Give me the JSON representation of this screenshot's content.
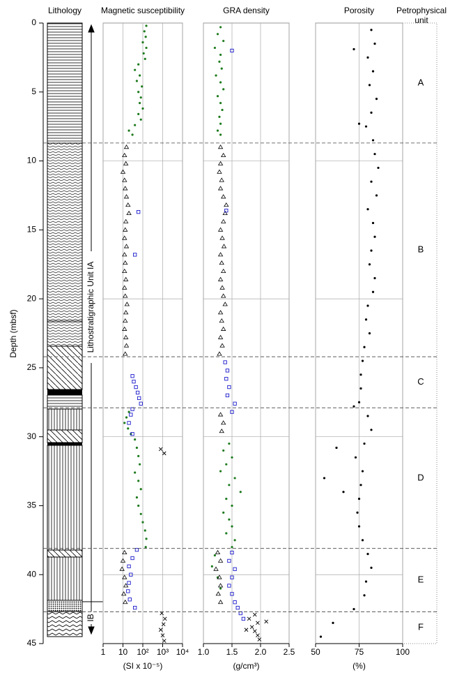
{
  "depth_axis": {
    "label": "Depth (mbsf)",
    "ylim": [
      0,
      45
    ],
    "yticks": [
      0,
      5,
      10,
      15,
      20,
      25,
      30,
      35,
      40,
      45
    ],
    "grid_depths": [
      10,
      20,
      30,
      40
    ]
  },
  "lithology": {
    "title": "Lithology",
    "unit_ia": "Lithostratigraphic Unit IA",
    "unit_ib": "IB"
  },
  "petrophysical": {
    "title": [
      "Petrophysical",
      "unit"
    ],
    "units": [
      "A",
      "B",
      "C",
      "D",
      "E",
      "F"
    ],
    "boundaries": [
      8.7,
      24.2,
      27.9,
      38.1,
      42.7
    ]
  },
  "chart_data": [
    {
      "type": "scatter",
      "title": "Magnetic susceptibility",
      "xlabel": "(SI x 10⁻⁵)",
      "log_x": true,
      "xlim": [
        1,
        10000
      ],
      "xticks": [
        1,
        10,
        {
          "value": 100,
          "label": "10²"
        },
        {
          "value": 1000,
          "label": "10³"
        },
        {
          "value": 10000,
          "label": "10⁴"
        }
      ],
      "series": [
        {
          "marker": "dot",
          "color": "#1e7b1e",
          "y": [
            0.2,
            0.6,
            1,
            1.4,
            1.8,
            2.2,
            2.6,
            3,
            3.4,
            3.8,
            4.2,
            4.6,
            5,
            5.4,
            5.8,
            6.2,
            6.6,
            7,
            7.4,
            7.8,
            8.1
          ],
          "x": [
            150,
            120,
            140,
            100,
            150,
            110,
            130,
            60,
            40,
            70,
            50,
            90,
            60,
            80,
            70,
            100,
            60,
            80,
            40,
            20,
            30
          ]
        },
        {
          "marker": "dot",
          "color": "#1e7b1e",
          "y": [
            28.2,
            28.6,
            29,
            29.4,
            29.8,
            30.2,
            30.8,
            31.4,
            32,
            32.6,
            33.2,
            33.8,
            34.4,
            35,
            35.6,
            36.2,
            36.8,
            37.4,
            38
          ],
          "x": [
            20,
            15,
            12,
            18,
            25,
            40,
            50,
            60,
            70,
            40,
            60,
            80,
            50,
            60,
            80,
            100,
            130,
            150,
            140
          ]
        },
        {
          "marker": "triangle",
          "color": "#000000",
          "y": [
            9,
            9.6,
            10.2,
            10.8,
            11.4,
            12,
            12.6,
            13.2,
            13.8,
            14.4,
            15,
            15.6,
            16.2,
            16.8,
            17.4,
            18,
            18.6,
            19.2,
            19.8,
            20.4,
            21,
            21.6,
            22.2,
            22.8,
            23.4,
            24,
            38.4,
            39,
            39.6,
            40.2,
            40.8,
            41.4,
            42
          ],
          "x": [
            15,
            12,
            14,
            10,
            12,
            13,
            15,
            18,
            20,
            14,
            13,
            12,
            15,
            12,
            13,
            12,
            14,
            12,
            13,
            16,
            14,
            13,
            12,
            14,
            15,
            13,
            12,
            10,
            9,
            12,
            14,
            11,
            13
          ]
        },
        {
          "marker": "square",
          "color": "#1a1acc",
          "y": [
            13.7,
            16.8,
            25.6,
            26,
            26.4,
            26.8,
            27.2,
            27.6,
            28,
            28.4,
            29,
            29.8,
            38.2,
            38.8,
            39.4,
            40,
            40.6,
            41.2,
            41.8,
            42.4
          ],
          "x": [
            60,
            40,
            30,
            35,
            45,
            55,
            65,
            80,
            30,
            25,
            20,
            30,
            50,
            30,
            20,
            25,
            20,
            18,
            22,
            40
          ]
        },
        {
          "marker": "cross",
          "color": "#000000",
          "y": [
            30.9,
            31.2,
            42.8,
            43.2,
            43.6,
            44,
            44.4,
            44.8
          ],
          "x": [
            800,
            1200,
            900,
            1300,
            1100,
            800,
            1000,
            1200
          ]
        }
      ]
    },
    {
      "type": "scatter",
      "title": "GRA density",
      "xlabel": "(g/cm³)",
      "log_x": false,
      "xlim": [
        1.0,
        2.5
      ],
      "xticks": [
        {
          "value": 1.0,
          "label": "1.0"
        },
        {
          "value": 1.5,
          "label": "1.5"
        },
        {
          "value": 2.0,
          "label": "2.0"
        },
        {
          "value": 2.5,
          "label": "2.5"
        }
      ],
      "series": [
        {
          "marker": "dot",
          "color": "#1e7b1e",
          "y": [
            0.3,
            0.8,
            1.3,
            1.8,
            2.3,
            2.8,
            3.3,
            3.8,
            4.3,
            4.8,
            5.3,
            5.8,
            6.3,
            6.8,
            7.3,
            7.8,
            8.1,
            30.5,
            31,
            31.5,
            32,
            32.5,
            33,
            33.5,
            34,
            34.5,
            35,
            35.5,
            36,
            36.5,
            37,
            37.5,
            38,
            38.6,
            39.4,
            40.2,
            41
          ],
          "x": [
            1.3,
            1.25,
            1.35,
            1.2,
            1.3,
            1.28,
            1.32,
            1.22,
            1.3,
            1.35,
            1.25,
            1.3,
            1.33,
            1.28,
            1.3,
            1.25,
            1.3,
            1.45,
            1.35,
            1.5,
            1.4,
            1.3,
            1.55,
            1.45,
            1.65,
            1.4,
            1.5,
            1.35,
            1.45,
            1.5,
            1.4,
            1.55,
            1.5,
            1.2,
            1.15,
            1.25,
            1.3
          ]
        },
        {
          "marker": "triangle",
          "color": "#000000",
          "y": [
            9,
            9.6,
            10.2,
            10.8,
            11.4,
            12,
            12.6,
            13.2,
            13.8,
            14.4,
            15,
            15.6,
            16.2,
            16.8,
            17.4,
            18,
            18.6,
            19.2,
            19.8,
            20.4,
            21,
            21.6,
            22.2,
            22.8,
            23.4,
            24,
            28.4,
            29,
            29.6,
            38.4,
            39,
            39.6,
            40.2,
            40.8,
            41.4,
            42
          ],
          "x": [
            1.3,
            1.35,
            1.3,
            1.28,
            1.32,
            1.3,
            1.35,
            1.4,
            1.38,
            1.35,
            1.3,
            1.33,
            1.36,
            1.3,
            1.32,
            1.35,
            1.3,
            1.33,
            1.35,
            1.38,
            1.3,
            1.32,
            1.35,
            1.3,
            1.33,
            1.28,
            1.3,
            1.35,
            1.32,
            1.25,
            1.3,
            1.22,
            1.28,
            1.3,
            1.26,
            1.3
          ]
        },
        {
          "marker": "square",
          "color": "#1a1acc",
          "y": [
            2,
            13.6,
            24.6,
            25.2,
            25.8,
            26.4,
            27,
            27.6,
            28.2,
            38.4,
            39,
            39.6,
            40.2,
            40.8,
            41.4,
            42,
            42.4,
            42.8,
            43.2
          ],
          "x": [
            1.5,
            1.4,
            1.38,
            1.42,
            1.4,
            1.45,
            1.42,
            1.55,
            1.5,
            1.5,
            1.45,
            1.55,
            1.5,
            1.45,
            1.5,
            1.55,
            1.6,
            1.65,
            1.7
          ]
        },
        {
          "marker": "cross",
          "color": "#000000",
          "y": [
            42.9,
            43.2,
            43.5,
            43.8,
            44.1,
            44.4,
            44.7,
            43.4,
            44
          ],
          "x": [
            1.9,
            1.8,
            1.95,
            1.85,
            1.9,
            1.95,
            1.98,
            2.1,
            1.75
          ]
        }
      ]
    },
    {
      "type": "scatter",
      "title": "Porosity",
      "xlabel": "(%)",
      "log_x": false,
      "xlim": [
        50,
        100
      ],
      "xticks": [
        50,
        75,
        100
      ],
      "series": [
        {
          "marker": "dot",
          "color": "#000000",
          "y": [
            0.5,
            1.5,
            2.5,
            3.5,
            4.5,
            5.5,
            6.5,
            7.5,
            8.5,
            9.5,
            10.5,
            11.5,
            12.5,
            13.5,
            14.5,
            15.5,
            16.5,
            17.5,
            18.5,
            19.5,
            20.5,
            21.5,
            22.5,
            23.5,
            24.5,
            25.5,
            26.5,
            27.5,
            28.5,
            29.5,
            30.5,
            31.5,
            32.5,
            33.5,
            34.5,
            35.5,
            36.5,
            37.5,
            38.5,
            39.5,
            40.5,
            41.5,
            42.5,
            43.5,
            44.5,
            1.9,
            7.3,
            27.8,
            33,
            30.8,
            34
          ],
          "x": [
            82,
            84,
            80,
            83,
            81,
            85,
            82,
            79,
            83,
            84,
            86,
            82,
            85,
            80,
            83,
            84,
            82,
            81,
            84,
            83,
            80,
            79,
            81,
            78,
            77,
            76,
            76,
            75,
            80,
            82,
            78,
            73,
            77,
            76,
            75,
            74,
            75,
            77,
            80,
            82,
            79,
            78,
            72,
            60,
            53,
            72,
            75,
            72,
            55,
            62,
            66
          ]
        }
      ]
    }
  ]
}
